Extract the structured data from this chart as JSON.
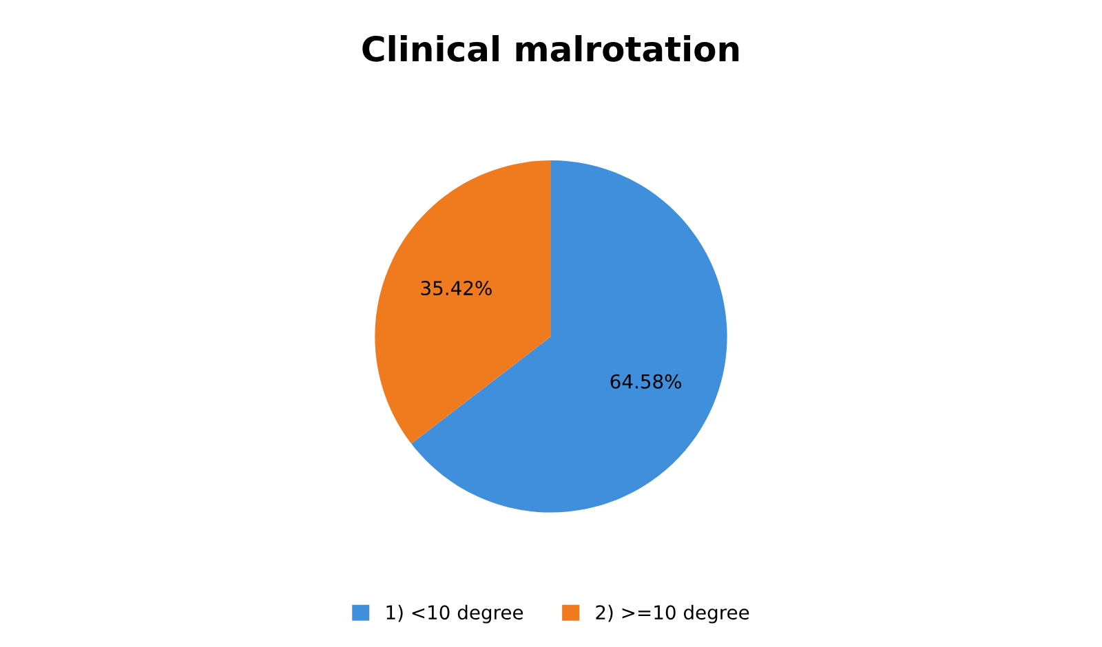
{
  "chart_data": {
    "type": "pie",
    "title": "Clinical malrotation",
    "categories": [
      "1) <10 degree",
      "2) >=10 degree"
    ],
    "values": [
      64.58,
      35.42
    ],
    "value_labels": [
      "64.58%",
      "35.42%"
    ],
    "colors": [
      "#3f8fdc",
      "#f07b1e"
    ],
    "legend": "bottom"
  }
}
